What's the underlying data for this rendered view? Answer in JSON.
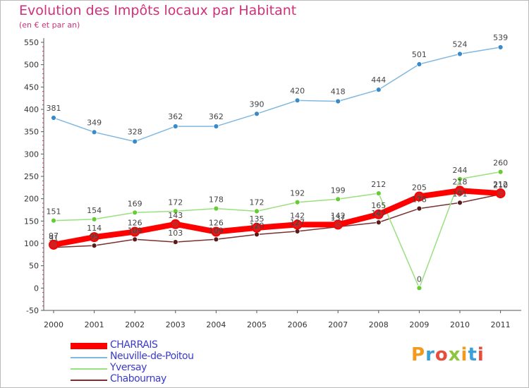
{
  "chart_data": {
    "type": "line",
    "title": "Evolution des Impôts locaux par Habitant",
    "subtitle": "(en € et par an)",
    "xlabel": "",
    "ylabel": "",
    "ylim": [
      -50,
      550
    ],
    "yticks": [
      "550",
      "500",
      "450",
      "400",
      "350",
      "300",
      "250",
      "200",
      "150",
      "100",
      "50",
      "0",
      "-50"
    ],
    "categories": [
      "2000",
      "2001",
      "2002",
      "2003",
      "2004",
      "2005",
      "2006",
      "2007",
      "2008",
      "2009",
      "2010",
      "2011"
    ],
    "series": [
      {
        "name": "CHARRAIS",
        "color": "#ff0000",
        "point_color": "#cc2222",
        "emphasis": "thick",
        "values": [
          97,
          114,
          126,
          143,
          126,
          135,
          142,
          142,
          165,
          205,
          218,
          212
        ],
        "labels": [
          "97",
          "114",
          "126",
          "143",
          "126",
          "135",
          "142",
          "142",
          "165",
          "205",
          "218",
          "212"
        ]
      },
      {
        "name": "Neuville-de-Poitou",
        "color": "#80b8e0",
        "point_color": "#3a8ac8",
        "emphasis": "thin",
        "values": [
          381,
          349,
          328,
          362,
          362,
          390,
          420,
          418,
          444,
          501,
          524,
          539
        ],
        "labels": [
          "381",
          "349",
          "328",
          "362",
          "362",
          "390",
          "420",
          "418",
          "444",
          "501",
          "524",
          "539"
        ]
      },
      {
        "name": "Yversay",
        "color": "#99e080",
        "point_color": "#66cc33",
        "emphasis": "thin",
        "values": [
          151,
          154,
          169,
          172,
          178,
          172,
          192,
          199,
          212,
          0,
          244,
          260
        ],
        "labels": [
          "151",
          "154",
          "169",
          "172",
          "178",
          "172",
          "192",
          "199",
          "212",
          "0",
          "244",
          "260"
        ]
      },
      {
        "name": "Chabournay",
        "color": "#7a3030",
        "point_color": "#5a1a1a",
        "emphasis": "thin",
        "values": [
          91,
          95,
          109,
          103,
          109,
          120,
          127,
          137,
          147,
          178,
          191,
          210
        ],
        "labels": [
          "91",
          "95",
          "109",
          "103",
          "109",
          "120",
          "127",
          "137",
          "147",
          "178",
          "191",
          "210"
        ]
      }
    ],
    "legend_position": "bottom-left",
    "grid": false
  },
  "branding": {
    "logo_text": "Proxiti",
    "logo_colors": [
      "#f39a1e",
      "#3aa0d8",
      "#e84c3d",
      "#8cc63f"
    ]
  }
}
